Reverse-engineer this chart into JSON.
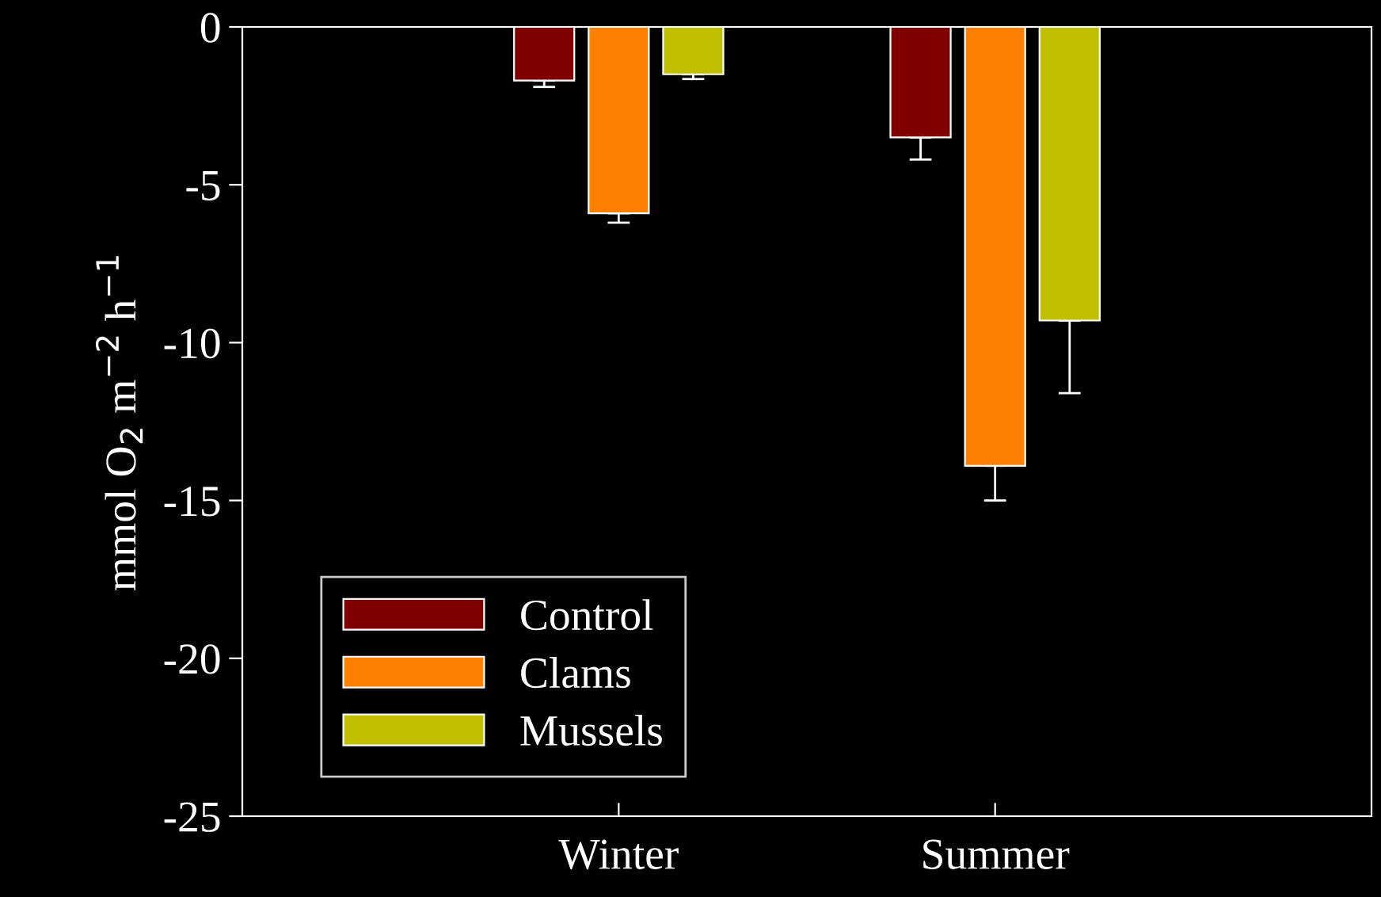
{
  "chart_data": {
    "type": "bar",
    "ylabel": "mmol O$_{2}$ m$^{−2}$ h$^{−1}$",
    "categories": [
      "Winter",
      "Summer"
    ],
    "series": [
      {
        "name": "Control",
        "color": "#800000",
        "values": [
          -1.7,
          -3.5
        ],
        "errors": [
          [
            -1.9,
            -1.7
          ],
          [
            -4.2,
            -3.5
          ]
        ]
      },
      {
        "name": "Clams",
        "color": "#ff8000",
        "values": [
          -5.9,
          -13.9
        ],
        "errors": [
          [
            -6.2,
            -5.9
          ],
          [
            -15.0,
            -13.9
          ]
        ]
      },
      {
        "name": "Mussels",
        "color": "#c0c000",
        "values": [
          -1.5,
          -9.3
        ],
        "errors": [
          [
            -1.65,
            -1.5
          ],
          [
            -11.6,
            -9.3
          ]
        ]
      }
    ],
    "ylim": [
      -25,
      0
    ],
    "yticks": [
      -25,
      -20,
      -15,
      -10,
      -5,
      0
    ],
    "grid": false,
    "legend": "bottom left"
  }
}
